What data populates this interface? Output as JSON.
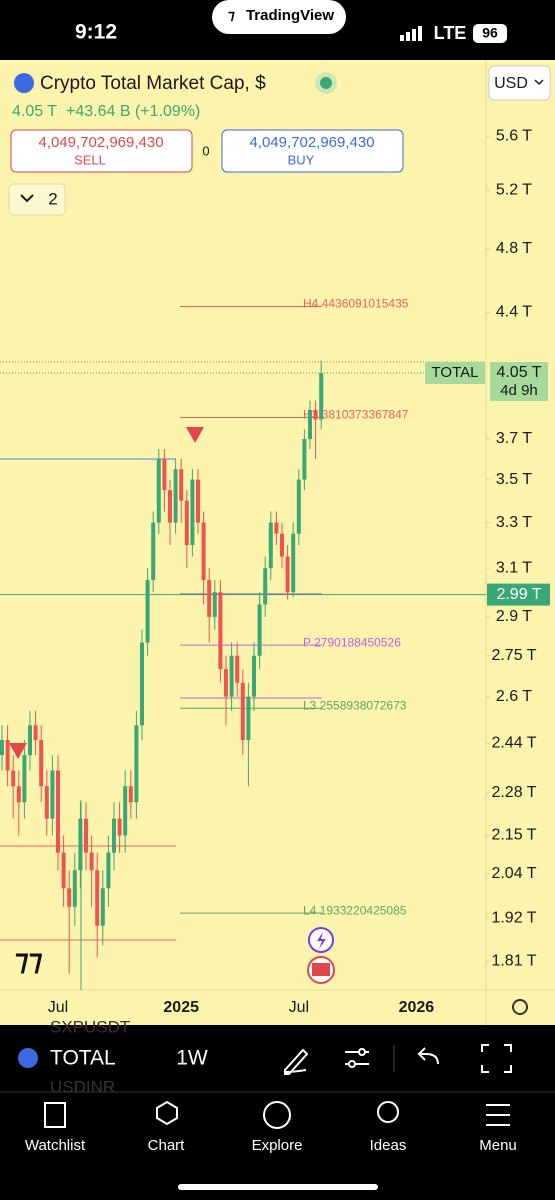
{
  "status": {
    "time": "9:12",
    "app": "TradingView",
    "network": "LTE",
    "battery": "96"
  },
  "header": {
    "title": "Crypto Total Market Cap, $",
    "price": "4.05 T",
    "change": "+43.64 B (+1.09%)",
    "sell_price": "4,049,702,969,430",
    "sell": "SELL",
    "spread": "0",
    "buy_price": "4,049,702,969,430",
    "buy": "BUY",
    "indicators": "2",
    "currency": "USD"
  },
  "chart": {
    "log": true,
    "ylim": [
      1.74,
      6.2
    ],
    "yticks": [
      {
        "value": 5.6,
        "label": "5.6 T"
      },
      {
        "value": 5.2,
        "label": "5.2 T"
      },
      {
        "value": 4.8,
        "label": "4.8 T"
      },
      {
        "value": 4.4,
        "label": "4.4 T"
      },
      {
        "value": 3.7,
        "label": "3.7 T"
      },
      {
        "value": 3.5,
        "label": "3.5 T"
      },
      {
        "value": 3.3,
        "label": "3.3 T"
      },
      {
        "value": 3.1,
        "label": "3.1 T"
      },
      {
        "value": 2.9,
        "label": "2.9 T"
      },
      {
        "value": 2.75,
        "label": "2.75 T"
      },
      {
        "value": 2.6,
        "label": "2.6 T"
      },
      {
        "value": 2.44,
        "label": "2.44 T"
      },
      {
        "value": 2.28,
        "label": "2.28 T"
      },
      {
        "value": 2.15,
        "label": "2.15 T"
      },
      {
        "value": 2.04,
        "label": "2.04 T"
      },
      {
        "value": 1.92,
        "label": "1.92 T"
      },
      {
        "value": 1.81,
        "label": "1.81 T"
      }
    ],
    "categories": [
      null,
      null,
      null,
      null,
      null,
      null,
      null,
      null,
      null,
      null,
      "Jul",
      null,
      null,
      null,
      null,
      null,
      null,
      null,
      null,
      null,
      null,
      null,
      null,
      null,
      null,
      null,
      null,
      null,
      null,
      null,
      null,
      null,
      "2025",
      null,
      null,
      null,
      null,
      null,
      null,
      null,
      null,
      null,
      null,
      null,
      null,
      null,
      null,
      null,
      null,
      null,
      null,
      null,
      null,
      "Jul",
      null,
      null,
      null,
      null,
      null,
      null,
      null,
      null,
      null,
      null,
      null,
      null,
      null,
      null,
      null,
      null,
      null,
      null,
      null,
      null,
      "2026",
      null,
      null,
      null,
      null,
      null,
      null,
      null,
      null,
      null,
      null,
      null
    ],
    "candles": [
      [
        2.4,
        2.5,
        2.35,
        2.45
      ],
      [
        2.45,
        2.5,
        2.3,
        2.35
      ],
      [
        2.35,
        2.4,
        2.2,
        2.3
      ],
      [
        2.3,
        2.35,
        2.15,
        2.25
      ],
      [
        2.25,
        2.45,
        2.2,
        2.4
      ],
      [
        2.4,
        2.55,
        2.35,
        2.5
      ],
      [
        2.5,
        2.55,
        2.4,
        2.45
      ],
      [
        2.45,
        2.5,
        2.25,
        2.3
      ],
      [
        2.3,
        2.35,
        2.15,
        2.2
      ],
      [
        2.2,
        2.4,
        2.15,
        2.35
      ],
      [
        2.35,
        2.4,
        2.05,
        2.1
      ],
      [
        2.1,
        2.15,
        1.95,
        2.0
      ],
      [
        2.0,
        2.05,
        1.78,
        1.95
      ],
      [
        1.95,
        2.1,
        1.9,
        2.05
      ],
      [
        2.05,
        2.25,
        2.0,
        2.2
      ],
      [
        2.2,
        2.25,
        2.05,
        2.1
      ],
      [
        2.1,
        2.15,
        1.95,
        2.05
      ],
      [
        2.05,
        2.1,
        1.82,
        1.9
      ],
      [
        1.9,
        2.05,
        1.85,
        2.0
      ],
      [
        2.0,
        2.15,
        1.95,
        2.1
      ],
      [
        2.1,
        2.25,
        2.05,
        2.2
      ],
      [
        2.2,
        2.25,
        2.1,
        2.15
      ],
      [
        2.15,
        2.35,
        2.1,
        2.3
      ],
      [
        2.3,
        2.35,
        2.2,
        2.25
      ],
      [
        2.25,
        2.55,
        2.2,
        2.5
      ],
      [
        2.5,
        2.85,
        2.45,
        2.8
      ],
      [
        2.8,
        3.1,
        2.75,
        3.05
      ],
      [
        3.05,
        3.35,
        3.0,
        3.3
      ],
      [
        3.3,
        3.65,
        3.25,
        3.6
      ],
      [
        3.6,
        3.65,
        3.35,
        3.45
      ],
      [
        3.45,
        3.5,
        3.2,
        3.3
      ],
      [
        3.3,
        3.6,
        3.25,
        3.55
      ],
      [
        3.55,
        3.6,
        3.3,
        3.4
      ],
      [
        3.4,
        3.45,
        3.1,
        3.2
      ],
      [
        3.2,
        3.55,
        3.15,
        3.5
      ],
      [
        3.5,
        3.55,
        3.25,
        3.3
      ],
      [
        3.3,
        3.35,
        2.95,
        3.05
      ],
      [
        3.05,
        3.1,
        2.8,
        2.9
      ],
      [
        2.9,
        3.05,
        2.85,
        3.0
      ],
      [
        3.0,
        3.05,
        2.65,
        2.7
      ],
      [
        2.7,
        2.75,
        2.5,
        2.6
      ],
      [
        2.6,
        2.8,
        2.55,
        2.75
      ],
      [
        2.75,
        2.8,
        2.6,
        2.65
      ],
      [
        2.65,
        2.7,
        2.4,
        2.45
      ],
      [
        2.45,
        2.65,
        2.3,
        2.6
      ],
      [
        2.6,
        2.8,
        2.55,
        2.75
      ],
      [
        2.75,
        3.0,
        2.7,
        2.95
      ],
      [
        2.95,
        3.15,
        2.9,
        3.1
      ],
      [
        3.1,
        3.35,
        3.05,
        3.3
      ],
      [
        3.3,
        3.35,
        3.2,
        3.25
      ],
      [
        3.25,
        3.3,
        3.1,
        3.15
      ],
      [
        3.15,
        3.2,
        2.97,
        3.0
      ],
      [
        3.0,
        3.3,
        2.98,
        3.25
      ],
      [
        3.25,
        3.55,
        3.2,
        3.5
      ],
      [
        3.5,
        3.75,
        3.45,
        3.7
      ],
      [
        3.7,
        3.9,
        3.65,
        3.85
      ],
      [
        3.85,
        3.9,
        3.6,
        3.8
      ],
      [
        3.8,
        4.12,
        3.75,
        4.05
      ],
      null,
      null,
      null,
      null,
      null,
      null,
      null,
      null,
      null,
      null,
      null,
      null,
      null,
      null,
      null,
      null,
      null,
      null,
      null,
      null,
      null,
      null,
      null,
      null,
      null,
      null,
      null,
      null
    ],
    "up_color": "#3aa876",
    "down_color": "#ef5350",
    "levels": [
      {
        "label": "H4 4436091015435",
        "value": 4.436091015435,
        "color": "#e0675f"
      },
      {
        "label": "H3 3810373367847",
        "value": 3.810373367847,
        "color": "#e0675f"
      },
      {
        "label": "P 2790188450526",
        "value": 2.790188450526,
        "color": "#c060e0"
      },
      {
        "label": "L3 2558938072673",
        "value": 2.558938072673,
        "color": "#5aa860"
      },
      {
        "label": "L4 1933220425085",
        "value": 1.933220425085,
        "color": "#5aa860"
      }
    ],
    "symbol_tag": "TOTAL",
    "last_price": {
      "value": 4.05,
      "label": "4.05 T"
    },
    "countdown": "4d 9h",
    "line_price": {
      "value": 2.99,
      "label": "2.99 T"
    }
  },
  "toolbar": {
    "symbol": "TOTAL",
    "interval": "1W",
    "ghost_1": "SXPUSDT",
    "ghost_2": "USDINR"
  },
  "nav": [
    "Watchlist",
    "Chart",
    "Explore",
    "Ideas",
    "Menu"
  ]
}
